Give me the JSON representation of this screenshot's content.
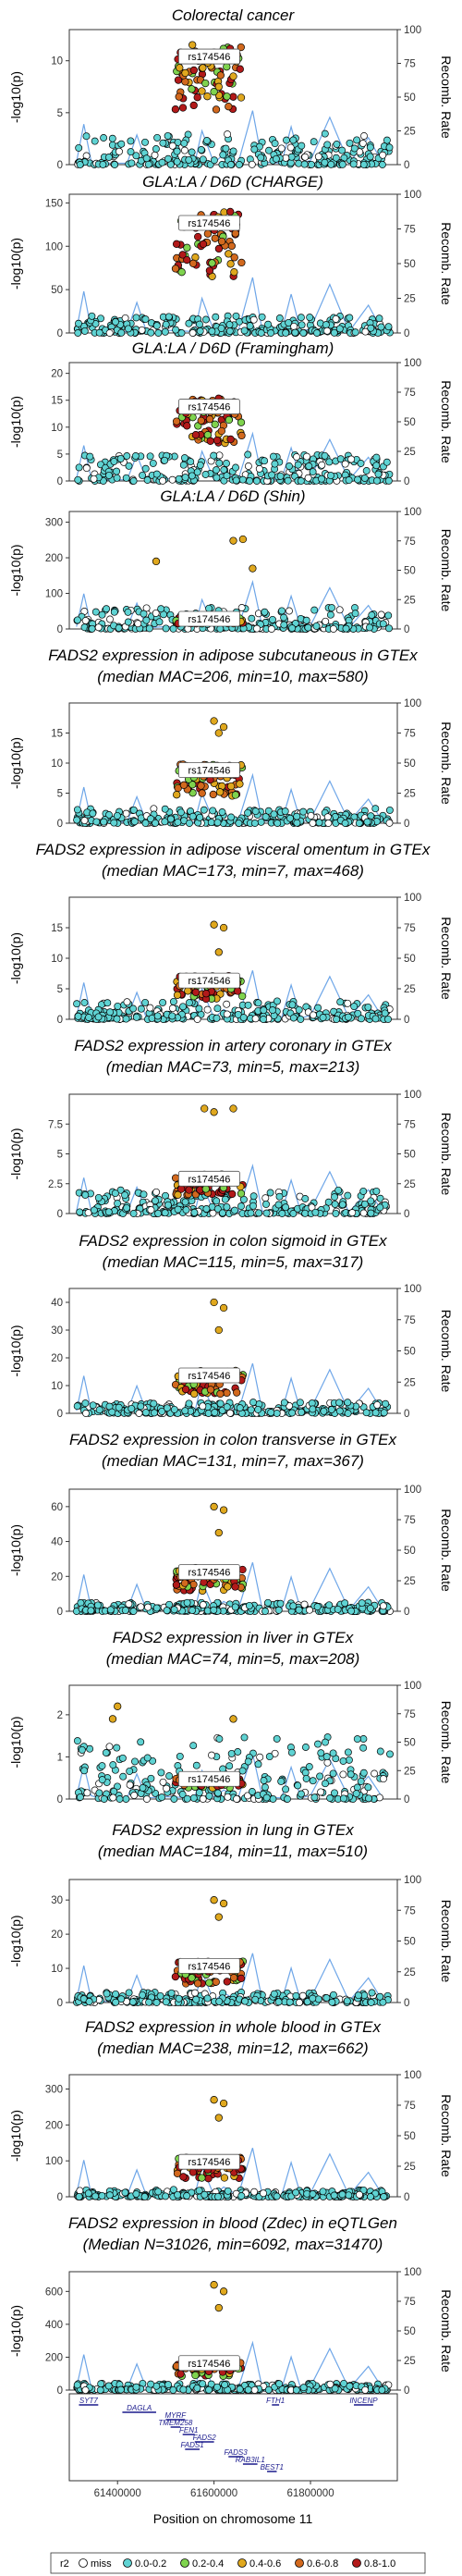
{
  "snp_label": "rs174546",
  "left_axis_label": "-log10(p)",
  "right_axis_label": "Recomb. Rate",
  "x_axis_label": "Position on chromosome 11",
  "x_ticks": [
    "61400000",
    "61600000",
    "61800000"
  ],
  "x_domain": [
    61300000,
    61980000
  ],
  "right_axis_ticks": [
    "0",
    "25",
    "50",
    "75",
    "100"
  ],
  "legend": {
    "title": "r2",
    "items": [
      {
        "label": "miss",
        "color": "#ffffff"
      },
      {
        "label": "0.0-0.2",
        "color": "#5fd3d3"
      },
      {
        "label": "0.2-0.4",
        "color": "#7fd34e"
      },
      {
        "label": "0.4-0.6",
        "color": "#e0a81e"
      },
      {
        "label": "0.6-0.8",
        "color": "#d2691e"
      },
      {
        "label": "0.8-1.0",
        "color": "#b21a1a"
      }
    ]
  },
  "genes": [
    {
      "name": "SYT7",
      "start": 61320000,
      "end": 61360000,
      "row": 0
    },
    {
      "name": "FTH1",
      "start": 61720000,
      "end": 61735000,
      "row": 0
    },
    {
      "name": "INCENP",
      "start": 61890000,
      "end": 61930000,
      "row": 0
    },
    {
      "name": "DAGLA",
      "start": 61410000,
      "end": 61480000,
      "row": 1
    },
    {
      "name": "MYRF",
      "start": 61500000,
      "end": 61540000,
      "row": 2
    },
    {
      "name": "TMEM258",
      "start": 61510000,
      "end": 61530000,
      "row": 3
    },
    {
      "name": "FEN1",
      "start": 61535000,
      "end": 61560000,
      "row": 4
    },
    {
      "name": "FADS2",
      "start": 61560000,
      "end": 61600000,
      "row": 5
    },
    {
      "name": "FADS1",
      "start": 61540000,
      "end": 61570000,
      "row": 6
    },
    {
      "name": "FADS3",
      "start": 61630000,
      "end": 61660000,
      "row": 7
    },
    {
      "name": "RAB3IL1",
      "start": 61660000,
      "end": 61690000,
      "row": 8
    },
    {
      "name": "BEST1",
      "start": 61710000,
      "end": 61730000,
      "row": 9
    }
  ],
  "chart_data": [
    {
      "type": "scatter",
      "title": "Colorectal cancer",
      "ylim": [
        0,
        13
      ],
      "yticks": [
        0,
        5,
        10
      ],
      "lead": {
        "x": 61590000,
        "y": 10.5
      },
      "spikes": [
        {
          "x": 61600000,
          "y": 10.8
        },
        {
          "x": 61640000,
          "y": 8.5
        },
        {
          "x": 61610000,
          "y": 7.5
        }
      ],
      "background_max": 3
    },
    {
      "type": "scatter",
      "title": "GLA:LA / D6D (CHARGE)",
      "ylim": [
        0,
        160
      ],
      "yticks": [
        0,
        50,
        100,
        150
      ],
      "lead": {
        "x": 61590000,
        "y": 128
      },
      "spikes": [],
      "background_max": 20
    },
    {
      "type": "scatter",
      "title": "GLA:LA / D6D (Framingham)",
      "ylim": [
        0,
        22
      ],
      "yticks": [
        0,
        5,
        10,
        15,
        20
      ],
      "lead": {
        "x": 61590000,
        "y": 14
      },
      "spikes": [],
      "background_max": 5
    },
    {
      "type": "scatter",
      "title": "GLA:LA / D6D (Shin)",
      "ylim": [
        0,
        330
      ],
      "yticks": [
        0,
        100,
        200,
        300
      ],
      "lead": {
        "x": 61590000,
        "y": 30
      },
      "spikes": [
        {
          "x": 61640000,
          "y": 248
        },
        {
          "x": 61660000,
          "y": 252
        },
        {
          "x": 61680000,
          "y": 170
        },
        {
          "x": 61480000,
          "y": 190
        }
      ],
      "background_max": 60
    },
    {
      "type": "scatter",
      "title": "FADS2 expression in adipose subcutaneous in GTEx",
      "subtitle": "(median MAC=206, min=10, max=580)",
      "ylim": [
        0,
        20
      ],
      "yticks": [
        0,
        5,
        10,
        15
      ],
      "lead": {
        "x": 61590000,
        "y": 9
      },
      "spikes": [
        {
          "x": 61600000,
          "y": 17
        },
        {
          "x": 61620000,
          "y": 16
        },
        {
          "x": 61610000,
          "y": 15
        }
      ],
      "background_max": 2.5
    },
    {
      "type": "scatter",
      "title": "FADS2 expression in adipose visceral omentum in GTEx",
      "subtitle": "(median MAC=173, min=7, max=468)",
      "ylim": [
        0,
        20
      ],
      "yticks": [
        0,
        5,
        10,
        15
      ],
      "lead": {
        "x": 61590000,
        "y": 6.5
      },
      "spikes": [
        {
          "x": 61600000,
          "y": 15.5
        },
        {
          "x": 61620000,
          "y": 15
        },
        {
          "x": 61610000,
          "y": 11
        }
      ],
      "background_max": 3
    },
    {
      "type": "scatter",
      "title": "FADS2 expression in artery coronary in GTEx",
      "subtitle": "(median MAC=73, min=5, max=213)",
      "ylim": [
        0,
        10
      ],
      "yticks": [
        0,
        2.5,
        5,
        7.5
      ],
      "lead": {
        "x": 61590000,
        "y": 3
      },
      "spikes": [
        {
          "x": 61580000,
          "y": 8.8
        },
        {
          "x": 61600000,
          "y": 8.5
        },
        {
          "x": 61640000,
          "y": 8.8
        }
      ],
      "background_max": 2
    },
    {
      "type": "scatter",
      "title": "FADS2 expression in colon sigmoid in GTEx",
      "subtitle": "(median MAC=115, min=5, max=317)",
      "ylim": [
        0,
        45
      ],
      "yticks": [
        0,
        10,
        20,
        30,
        40
      ],
      "lead": {
        "x": 61590000,
        "y": 14
      },
      "spikes": [
        {
          "x": 61600000,
          "y": 40
        },
        {
          "x": 61620000,
          "y": 38
        },
        {
          "x": 61610000,
          "y": 30
        }
      ],
      "background_max": 4
    },
    {
      "type": "scatter",
      "title": "FADS2 expression in colon transverse in GTEx",
      "subtitle": "(median MAC=131, min=7, max=367)",
      "ylim": [
        0,
        70
      ],
      "yticks": [
        0,
        20,
        40,
        60
      ],
      "lead": {
        "x": 61590000,
        "y": 23
      },
      "spikes": [
        {
          "x": 61600000,
          "y": 60
        },
        {
          "x": 61620000,
          "y": 58
        },
        {
          "x": 61610000,
          "y": 45
        }
      ],
      "background_max": 5
    },
    {
      "type": "scatter",
      "title": "FADS2 expression in liver in GTEx",
      "subtitle": "(median MAC=74, min=5, max=208)",
      "ylim": [
        0,
        2.7
      ],
      "yticks": [
        0,
        1,
        2
      ],
      "lead": {
        "x": 61590000,
        "y": 0.5
      },
      "spikes": [
        {
          "x": 61400000,
          "y": 2.2
        },
        {
          "x": 61390000,
          "y": 1.9
        },
        {
          "x": 61640000,
          "y": 1.9
        }
      ],
      "background_max": 1.5
    },
    {
      "type": "scatter",
      "title": "FADS2 expression in lung in GTEx",
      "subtitle": "(median MAC=184, min=11, max=510)",
      "ylim": [
        0,
        36
      ],
      "yticks": [
        0,
        10,
        20,
        30
      ],
      "lead": {
        "x": 61590000,
        "y": 11
      },
      "spikes": [
        {
          "x": 61600000,
          "y": 30
        },
        {
          "x": 61620000,
          "y": 29
        },
        {
          "x": 61610000,
          "y": 25
        }
      ],
      "background_max": 3
    },
    {
      "type": "scatter",
      "title": "FADS2 expression in whole blood in GTEx",
      "subtitle": "(median MAC=238, min=12, max=662)",
      "ylim": [
        0,
        340
      ],
      "yticks": [
        0,
        100,
        200,
        300
      ],
      "lead": {
        "x": 61590000,
        "y": 100
      },
      "spikes": [
        {
          "x": 61600000,
          "y": 270
        },
        {
          "x": 61620000,
          "y": 260
        },
        {
          "x": 61610000,
          "y": 220
        }
      ],
      "background_max": 20
    },
    {
      "type": "scatter",
      "title": "FADS2 expression in blood (Zdec) in eQTLGen",
      "subtitle": "(Median N=31026, min=6092, max=31470)",
      "ylim": [
        0,
        720
      ],
      "yticks": [
        0,
        200,
        400,
        600
      ],
      "lead": {
        "x": 61590000,
        "y": 170
      },
      "spikes": [
        {
          "x": 61600000,
          "y": 640
        },
        {
          "x": 61620000,
          "y": 600
        },
        {
          "x": 61610000,
          "y": 500
        }
      ],
      "background_max": 40
    }
  ]
}
